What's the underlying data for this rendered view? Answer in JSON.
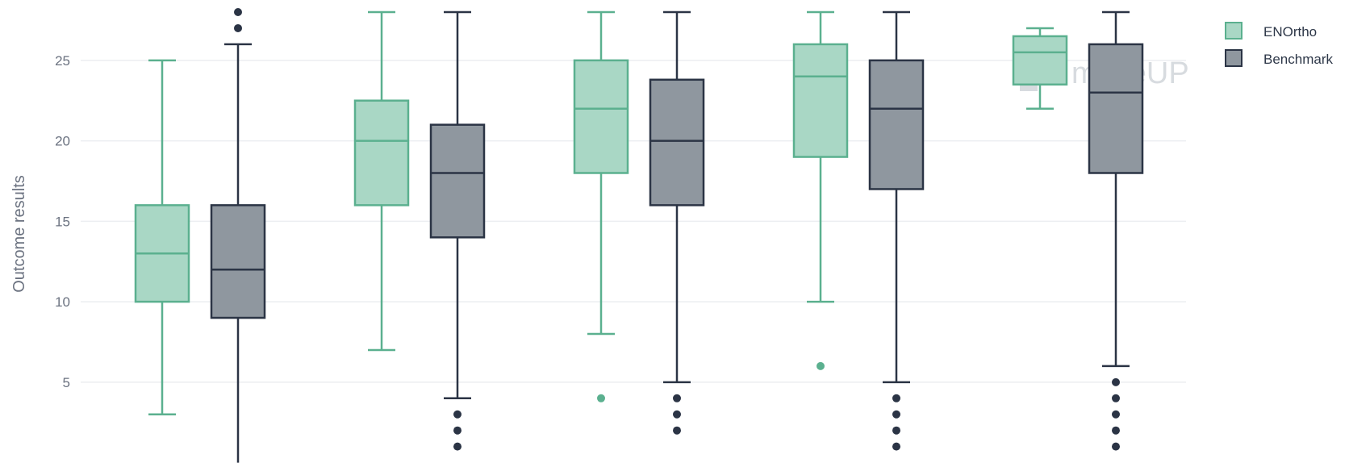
{
  "chart_data": {
    "type": "box",
    "ylabel": "Outcome results",
    "ylim": [
      0,
      28
    ],
    "yticks": [
      5,
      10,
      15,
      20,
      25
    ],
    "grid": true,
    "legend_position": "top-right",
    "groups": 5,
    "watermark": "moveUP",
    "series": [
      {
        "name": "ENOrtho",
        "color": "#5bb08f",
        "fill": "#a9d7c5",
        "boxes": [
          {
            "min": 3,
            "q1": 10,
            "median": 13,
            "q3": 16,
            "max": 25,
            "outliers": []
          },
          {
            "min": 7,
            "q1": 16,
            "median": 20,
            "q3": 22.5,
            "max": 28,
            "outliers": []
          },
          {
            "min": 8,
            "q1": 18,
            "median": 22,
            "q3": 25,
            "max": 28,
            "outliers": [
              4
            ]
          },
          {
            "min": 10,
            "q1": 19,
            "median": 24,
            "q3": 26,
            "max": 28,
            "outliers": [
              6
            ]
          },
          {
            "min": 22,
            "q1": 23.5,
            "median": 25.5,
            "q3": 26.5,
            "max": 27,
            "outliers": []
          }
        ]
      },
      {
        "name": "Benchmark",
        "color": "#2b3445",
        "fill": "#8f979f",
        "boxes": [
          {
            "min": 0,
            "q1": 9,
            "median": 12,
            "q3": 16,
            "max": 26,
            "outliers": [
              27,
              28
            ]
          },
          {
            "min": 4,
            "q1": 14,
            "median": 18,
            "q3": 21,
            "max": 28,
            "outliers": [
              3,
              2,
              1
            ]
          },
          {
            "min": 5,
            "q1": 16,
            "median": 20,
            "q3": 23.8,
            "max": 28,
            "outliers": [
              4,
              3,
              2
            ]
          },
          {
            "min": 5,
            "q1": 17,
            "median": 22,
            "q3": 25,
            "max": 28,
            "outliers": [
              4,
              3,
              2,
              1
            ]
          },
          {
            "min": 6,
            "q1": 18,
            "median": 23,
            "q3": 26,
            "max": 28,
            "outliers": [
              5,
              4,
              3,
              2,
              1
            ]
          }
        ]
      }
    ]
  }
}
